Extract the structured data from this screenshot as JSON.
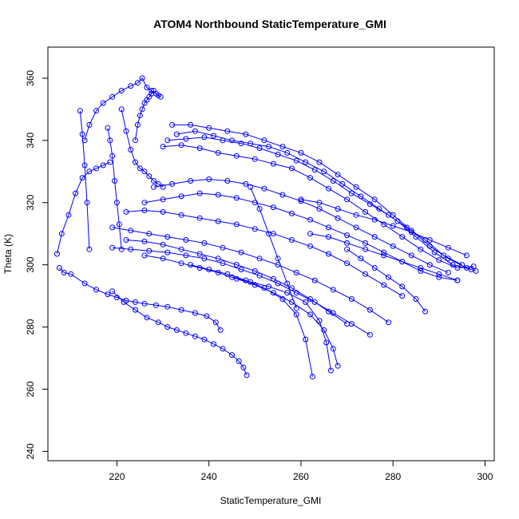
{
  "chart_data": {
    "type": "scatter",
    "title": "ATOM4 Northbound StaticTemperature_GMI",
    "xlabel": "StaticTemperature_GMI",
    "ylabel": "Theta (K)",
    "xlim": [
      205,
      302
    ],
    "ylim": [
      237,
      370
    ],
    "x_ticks": [
      220,
      240,
      260,
      280,
      300
    ],
    "y_ticks": [
      240,
      260,
      280,
      300,
      320,
      340,
      360
    ],
    "grid": false,
    "legend": "none",
    "marker": "open-circle",
    "connected": true,
    "color": "#0000ff",
    "series": [
      {
        "x": [
          207,
          208,
          209.5,
          211,
          212.5,
          214,
          215.5,
          217,
          218.5
        ],
        "y": [
          303.5,
          310,
          316,
          323,
          328,
          330,
          331,
          332,
          333
        ]
      },
      {
        "x": [
          207.5,
          208.5,
          210,
          213,
          215.5,
          218,
          220,
          222,
          224,
          226,
          228.5,
          231,
          234,
          237,
          239.5,
          241.5,
          242.5
        ],
        "y": [
          299,
          297.5,
          297,
          294,
          292,
          290.5,
          289.5,
          288.5,
          288,
          287.5,
          287,
          286.5,
          285.5,
          284.5,
          283.5,
          281.5,
          279
        ]
      },
      {
        "x": [
          219,
          221.5,
          224,
          226.5,
          229,
          231,
          233,
          235,
          237,
          239,
          241,
          243,
          245,
          246.5,
          247.5,
          248.2
        ],
        "y": [
          291.5,
          288,
          285.5,
          283,
          281.5,
          280,
          279,
          278,
          277,
          276,
          274.5,
          273,
          271,
          269,
          267,
          264.5
        ]
      },
      {
        "x": [
          213,
          214,
          215.5,
          217,
          219,
          221,
          223,
          224.5,
          225.5,
          226.5,
          227.5,
          228.5,
          229,
          229.5
        ],
        "y": [
          340,
          345,
          349.5,
          352,
          354,
          356,
          357.5,
          358.5,
          360,
          357,
          356,
          355,
          354.5,
          354
        ]
      },
      {
        "x": [
          224,
          224.5,
          225,
          225.5,
          226,
          226.5,
          227,
          227.5,
          228
        ],
        "y": [
          340,
          345,
          348,
          350,
          352,
          353,
          354,
          355,
          356
        ]
      },
      {
        "x": [
          232,
          236,
          240,
          244,
          248,
          252,
          256,
          260,
          264,
          268,
          272,
          276,
          280,
          284,
          288,
          292,
          296,
          298
        ],
        "y": [
          345,
          345,
          344,
          343,
          342,
          340,
          338,
          336,
          333,
          329,
          325,
          321,
          316,
          311,
          306,
          302,
          299,
          298
        ]
      },
      {
        "x": [
          233,
          237,
          241,
          245,
          249,
          253,
          257,
          261,
          265,
          269,
          273,
          277,
          281,
          285,
          289,
          293,
          297
        ],
        "y": [
          342,
          343,
          341.5,
          340,
          339,
          338,
          336,
          333,
          330,
          326,
          322,
          318,
          314,
          309,
          304,
          300,
          298.5
        ]
      },
      {
        "x": [
          230,
          234,
          238,
          242,
          246,
          250,
          254,
          258,
          262,
          266,
          270,
          274,
          278,
          282,
          286,
          290,
          294,
          297.5
        ],
        "y": [
          338,
          338.5,
          337.5,
          336,
          335,
          334,
          332.5,
          331,
          328,
          324.5,
          321,
          317,
          313,
          309,
          305,
          301.5,
          299,
          299.5
        ]
      },
      {
        "x": [
          231,
          235,
          239,
          243,
          247,
          251,
          255,
          259,
          263,
          267,
          271,
          275,
          279,
          283,
          287,
          291,
          295
        ],
        "y": [
          340,
          340.5,
          341,
          340,
          339,
          337.5,
          335.5,
          333.5,
          330.5,
          327,
          323,
          319.5,
          316,
          312,
          308,
          303,
          300
        ]
      },
      {
        "x": [
          228,
          232,
          236,
          240,
          244,
          248,
          252,
          256,
          260,
          264,
          268,
          272,
          276,
          280,
          284,
          288,
          292
        ],
        "y": [
          325,
          326,
          327,
          327.5,
          327,
          326,
          324.5,
          322.5,
          320.5,
          318,
          315,
          312,
          309,
          306,
          303,
          300,
          297.5
        ]
      },
      {
        "x": [
          226,
          230,
          234,
          238,
          242,
          246,
          250,
          254,
          258,
          262,
          266,
          270,
          274,
          278,
          282,
          286,
          290,
          294
        ],
        "y": [
          320,
          321,
          322,
          323,
          322.5,
          321.5,
          320,
          318.5,
          316.5,
          314.5,
          312,
          309.5,
          307,
          304,
          301,
          298,
          296,
          295
        ]
      },
      {
        "x": [
          222,
          226,
          230,
          234,
          238,
          242,
          246,
          250,
          254,
          258,
          262,
          266,
          270,
          274,
          278,
          282
        ],
        "y": [
          317,
          317.5,
          317,
          316,
          315,
          314,
          313,
          311.5,
          310,
          308,
          306,
          303.5,
          300.5,
          297,
          293.5,
          290
        ]
      },
      {
        "x": [
          219,
          223,
          227,
          231,
          235,
          239,
          243,
          247,
          251,
          255,
          259,
          263,
          267,
          271,
          275,
          279
        ],
        "y": [
          312,
          311,
          310,
          309,
          308,
          307,
          305.5,
          304,
          302,
          300,
          297.5,
          295,
          292,
          289,
          285.5,
          281.5
        ]
      },
      {
        "x": [
          219,
          223,
          227,
          231,
          235,
          239,
          243,
          247,
          251,
          255,
          259,
          263,
          267,
          271,
          275
        ],
        "y": [
          305.5,
          305,
          304.5,
          304,
          303,
          302,
          300.5,
          298.5,
          296.5,
          294,
          291,
          288,
          284.5,
          281,
          277.5
        ]
      },
      {
        "x": [
          222,
          226,
          230,
          234,
          238,
          242,
          246,
          250,
          254,
          258,
          262,
          266,
          270
        ],
        "y": [
          308,
          307.5,
          306.5,
          305,
          303.5,
          302,
          300,
          298,
          295.5,
          292.5,
          289,
          285,
          281
        ]
      },
      {
        "x": [
          226,
          230,
          234,
          238,
          242,
          246,
          250,
          254,
          258,
          262,
          265,
          267,
          268
        ],
        "y": [
          303,
          302,
          300.5,
          299,
          297.5,
          295.5,
          293.5,
          291,
          288,
          284,
          279,
          273,
          267.5
        ]
      },
      {
        "x": [
          236,
          240,
          244,
          248,
          252,
          256,
          259,
          261,
          262.5
        ],
        "y": [
          300,
          298.5,
          297,
          295,
          292.5,
          289,
          284,
          276,
          264
        ]
      },
      {
        "x": [
          245,
          249,
          253,
          257,
          261,
          264,
          265.5,
          266.5
        ],
        "y": [
          296,
          294.5,
          293,
          291,
          288,
          282,
          275,
          266
        ]
      },
      {
        "x": [
          218,
          218.5,
          219,
          219.5,
          220,
          220.5,
          221
        ],
        "y": [
          344,
          340,
          335,
          327,
          320,
          313,
          305
        ]
      },
      {
        "x": [
          212,
          212.5,
          213,
          213.5,
          214
        ],
        "y": [
          349.5,
          342,
          332,
          320,
          305
        ]
      },
      {
        "x": [
          221,
          222,
          223,
          224,
          225,
          226,
          227,
          228,
          229,
          230
        ],
        "y": [
          350,
          343,
          337,
          333,
          331,
          330,
          328.5,
          327,
          326,
          325
        ]
      },
      {
        "x": [
          260,
          264,
          268,
          272,
          276,
          280,
          284,
          288,
          292,
          296
        ],
        "y": [
          321,
          320,
          318,
          316,
          314.5,
          312.5,
          310.5,
          308,
          305.5,
          303
        ]
      },
      {
        "x": [
          262,
          266,
          270,
          274,
          278,
          282,
          286,
          290,
          294
        ],
        "y": [
          310,
          309,
          307,
          305,
          303,
          301,
          299,
          297,
          295
        ]
      },
      {
        "x": [
          270,
          273,
          276,
          279,
          282,
          285,
          287
        ],
        "y": [
          305,
          302,
          299,
          296,
          293,
          289,
          285
        ]
      },
      {
        "x": [
          249,
          251,
          253,
          255,
          257,
          259
        ],
        "y": [
          325,
          318,
          310,
          302,
          294,
          286
        ]
      }
    ]
  }
}
